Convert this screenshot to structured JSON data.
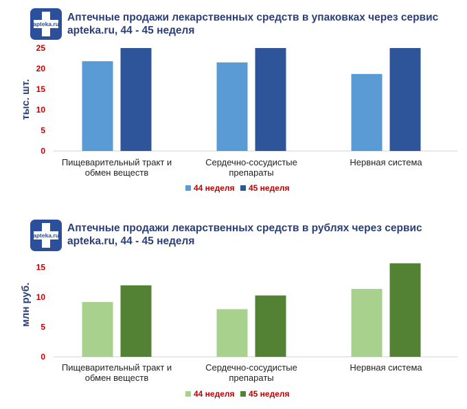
{
  "logo": {
    "text": "apteka.ru"
  },
  "chart_data": [
    {
      "type": "bar",
      "title": "Аптечные продажи лекарственных средств в упаковках через сервис apteka.ru, 44 - 45 неделя",
      "ylabel": "тыс. шт.",
      "categories": [
        [
          "Пищеварительный тракт и",
          "обмен веществ"
        ],
        [
          "Сердечно-сосудистые",
          "препараты"
        ],
        [
          "Нервная система"
        ]
      ],
      "series": [
        {
          "name": "44 неделя",
          "color": "#5b9bd5",
          "values": [
            21.8,
            21.5,
            18.7
          ]
        },
        {
          "name": "45 неделя",
          "color": "#2e559a",
          "values": [
            25,
            25,
            25
          ]
        }
      ],
      "yticks": [
        0,
        5,
        10,
        15,
        20,
        25
      ],
      "ylim": [
        0,
        25
      ],
      "legend": "bottom-center"
    },
    {
      "type": "bar",
      "title": "Аптечные продажи лекарственных средств в рублях через сервис apteka.ru, 44 - 45 неделя",
      "ylabel": "млн руб.",
      "categories": [
        [
          "Пищеварительный тракт и",
          "обмен веществ"
        ],
        [
          "Сердечно-сосудистые",
          "препараты"
        ],
        [
          "Нервная система"
        ]
      ],
      "series": [
        {
          "name": "44 неделя",
          "color": "#a9d18e",
          "values": [
            9.2,
            8,
            11.4
          ]
        },
        {
          "name": "45 неделя",
          "color": "#548235",
          "values": [
            12,
            10.3,
            15.7
          ]
        }
      ],
      "yticks": [
        0,
        5,
        10,
        15
      ],
      "ylim": [
        0,
        17.5
      ],
      "legend": "bottom-center"
    }
  ]
}
